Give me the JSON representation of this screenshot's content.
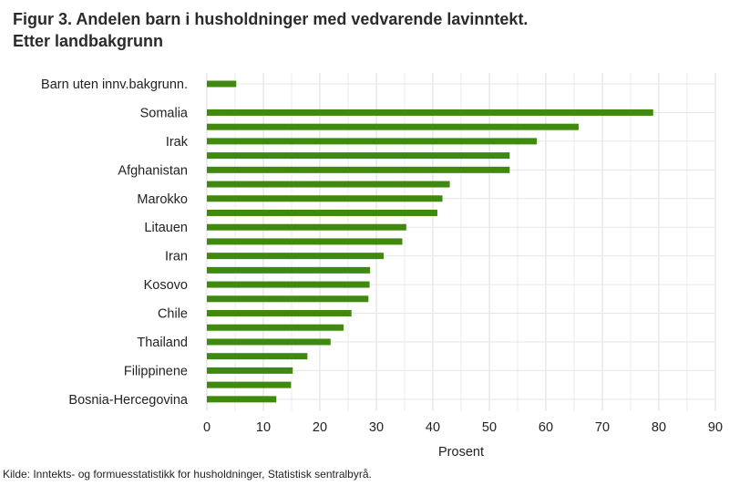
{
  "title_line1": "Figur 3. Andelen barn i husholdninger med vedvarende lavinntekt.",
  "title_line2": "Etter landbakgrunn",
  "source": "Kilde: Inntekts- og formuesstatistikk for husholdninger, Statistisk sentralbyrå.",
  "chart_data": {
    "type": "bar",
    "orientation": "horizontal",
    "categories": [
      "Barn uten innv.bakgrunn.",
      "",
      "Somalia",
      "",
      "Irak",
      "",
      "Afghanistan",
      "",
      "Marokko",
      "",
      "Litauen",
      "",
      "Iran",
      "",
      "Kosovo",
      "",
      "Chile",
      "",
      "Thailand",
      "",
      "Filippinene",
      "",
      "Bosnia-Hercegovina"
    ],
    "values": [
      5.2,
      null,
      79,
      65.8,
      58.4,
      53.6,
      53.6,
      43,
      41.7,
      40.8,
      35.3,
      34.6,
      31.3,
      28.9,
      28.8,
      28.6,
      25.6,
      24.2,
      21.9,
      17.8,
      15.2,
      14.9,
      12.3
    ],
    "xlabel": "Prosent",
    "xlim": [
      0,
      90
    ],
    "xticks": [
      0,
      10,
      20,
      30,
      40,
      50,
      60,
      70,
      80,
      90
    ],
    "bar_color": "#3f8a0e",
    "grid": true
  }
}
